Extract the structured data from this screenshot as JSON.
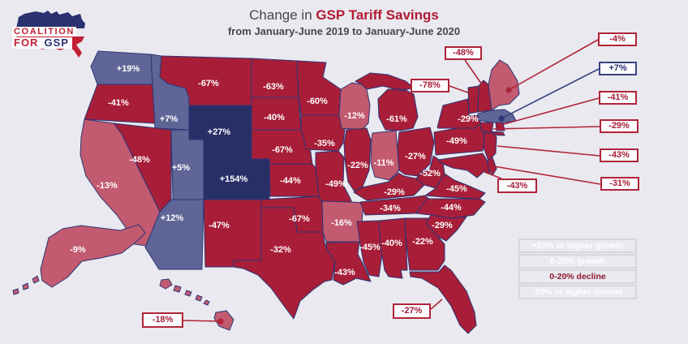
{
  "title": {
    "prefix": "Change in ",
    "highlight": "GSP Tariff Savings"
  },
  "subtitle": "from January-June 2019 to January-June 2020",
  "logo": {
    "coalition": "COALITION",
    "for": "FOR",
    "gsp": "GSP"
  },
  "legend": [
    {
      "label": "+20% or higher growth",
      "category": "growth-high",
      "color": "#282e66"
    },
    {
      "label": "0-20% growth",
      "category": "growth-low",
      "color": "#5f6597"
    },
    {
      "label": "0-20% decline",
      "category": "decline-low",
      "color": "#c25a70"
    },
    {
      "label": "-20% or higher decline",
      "category": "decline-high",
      "color": "#a81e38"
    }
  ],
  "colors": {
    "background": "#e9e9ef",
    "state_border": "#2e3474",
    "callout_red": "#b02439",
    "callout_navy": "#3a4280",
    "title_red": "#b21a31",
    "title_gray": "#46464e"
  },
  "chart_data": {
    "type": "choropleth",
    "title": "Change in GSP Tariff Savings",
    "subtitle": "from January-June 2019 to January-June 2020",
    "unit": "percent change",
    "legend_position": "bottom-right",
    "states": [
      {
        "abbr": "WA",
        "name": "Washington",
        "value": "+19%",
        "category": "growth-low"
      },
      {
        "abbr": "OR",
        "name": "Oregon",
        "value": "-41%",
        "category": "decline-high"
      },
      {
        "abbr": "CA",
        "name": "California",
        "value": "-13%",
        "category": "decline-low"
      },
      {
        "abbr": "ID",
        "name": "Idaho",
        "value": "+7%",
        "category": "growth-low"
      },
      {
        "abbr": "NV",
        "name": "Nevada",
        "value": "-48%",
        "category": "decline-high"
      },
      {
        "abbr": "UT",
        "name": "Utah",
        "value": "+5%",
        "category": "growth-low"
      },
      {
        "abbr": "AZ",
        "name": "Arizona",
        "value": "+12%",
        "category": "growth-low"
      },
      {
        "abbr": "MT",
        "name": "Montana",
        "value": "-67%",
        "category": "decline-high"
      },
      {
        "abbr": "WY",
        "name": "Wyoming",
        "value": "+27%",
        "category": "growth-high"
      },
      {
        "abbr": "CO",
        "name": "Colorado",
        "value": "+154%",
        "category": "growth-high"
      },
      {
        "abbr": "NM",
        "name": "New Mexico",
        "value": "-47%",
        "category": "decline-high"
      },
      {
        "abbr": "ND",
        "name": "North Dakota",
        "value": "-63%",
        "category": "decline-high"
      },
      {
        "abbr": "SD",
        "name": "South Dakota",
        "value": "-40%",
        "category": "decline-high"
      },
      {
        "abbr": "NE",
        "name": "Nebraska",
        "value": "-67%",
        "category": "decline-high"
      },
      {
        "abbr": "KS",
        "name": "Kansas",
        "value": "-44%",
        "category": "decline-high"
      },
      {
        "abbr": "OK",
        "name": "Oklahoma",
        "value": "-67%",
        "category": "decline-high"
      },
      {
        "abbr": "TX",
        "name": "Texas",
        "value": "-32%",
        "category": "decline-high"
      },
      {
        "abbr": "MN",
        "name": "Minnesota",
        "value": "-60%",
        "category": "decline-high"
      },
      {
        "abbr": "IA",
        "name": "Iowa",
        "value": "-35%",
        "category": "decline-high"
      },
      {
        "abbr": "MO",
        "name": "Missouri",
        "value": "-49%",
        "category": "decline-high"
      },
      {
        "abbr": "AR",
        "name": "Arkansas",
        "value": "-16%",
        "category": "decline-low"
      },
      {
        "abbr": "LA",
        "name": "Louisiana",
        "value": "-43%",
        "category": "decline-high"
      },
      {
        "abbr": "WI",
        "name": "Wisconsin",
        "value": "-12%",
        "category": "decline-low"
      },
      {
        "abbr": "IL",
        "name": "Illinois",
        "value": "-22%",
        "category": "decline-high"
      },
      {
        "abbr": "IN",
        "name": "Indiana",
        "value": "-11%",
        "category": "decline-low"
      },
      {
        "abbr": "MI",
        "name": "Michigan",
        "value": "-61%",
        "category": "decline-high"
      },
      {
        "abbr": "OH",
        "name": "Ohio",
        "value": "-27%",
        "category": "decline-high"
      },
      {
        "abbr": "KY",
        "name": "Kentucky",
        "value": "-29%",
        "category": "decline-high"
      },
      {
        "abbr": "TN",
        "name": "Tennessee",
        "value": "-34%",
        "category": "decline-high"
      },
      {
        "abbr": "MS",
        "name": "Mississippi",
        "value": "-45%",
        "category": "decline-high"
      },
      {
        "abbr": "AL",
        "name": "Alabama",
        "value": "-40%",
        "category": "decline-high"
      },
      {
        "abbr": "GA",
        "name": "Georgia",
        "value": "-22%",
        "category": "decline-high"
      },
      {
        "abbr": "FL",
        "name": "Florida",
        "value": "-27%",
        "category": "decline-high"
      },
      {
        "abbr": "SC",
        "name": "South Carolina",
        "value": "-29%",
        "category": "decline-high"
      },
      {
        "abbr": "NC",
        "name": "North Carolina",
        "value": "-44%",
        "category": "decline-high"
      },
      {
        "abbr": "VA",
        "name": "Virginia",
        "value": "-45%",
        "category": "decline-high"
      },
      {
        "abbr": "WV",
        "name": "West Virginia",
        "value": "-52%",
        "category": "decline-high"
      },
      {
        "abbr": "PA",
        "name": "Pennsylvania",
        "value": "-49%",
        "category": "decline-high"
      },
      {
        "abbr": "NY",
        "name": "New York",
        "value": "-29%",
        "category": "decline-high"
      },
      {
        "abbr": "MD",
        "name": "Maryland",
        "value": "-43%",
        "category": "decline-high"
      },
      {
        "abbr": "NJ",
        "name": "New Jersey",
        "value": "-43%",
        "category": "decline-high"
      },
      {
        "abbr": "DE",
        "name": "Delaware",
        "value": "-31%",
        "category": "decline-high"
      },
      {
        "abbr": "VT",
        "name": "Vermont",
        "value": "-78%",
        "category": "decline-high"
      },
      {
        "abbr": "NH",
        "name": "New Hampshire",
        "value": "-48%",
        "category": "decline-high"
      },
      {
        "abbr": "ME",
        "name": "Maine",
        "value": "-4%",
        "category": "decline-low"
      },
      {
        "abbr": "MA",
        "name": "Massachusetts",
        "value": "+7%",
        "category": "growth-low"
      },
      {
        "abbr": "CT",
        "name": "Connecticut",
        "value": "-29%",
        "category": "decline-high"
      },
      {
        "abbr": "RI",
        "name": "Rhode Island",
        "value": "-41%",
        "category": "decline-high"
      },
      {
        "abbr": "AK",
        "name": "Alaska",
        "value": "-9%",
        "category": "decline-low"
      },
      {
        "abbr": "HI",
        "name": "Hawaii",
        "value": "-18%",
        "category": "decline-low"
      }
    ]
  }
}
